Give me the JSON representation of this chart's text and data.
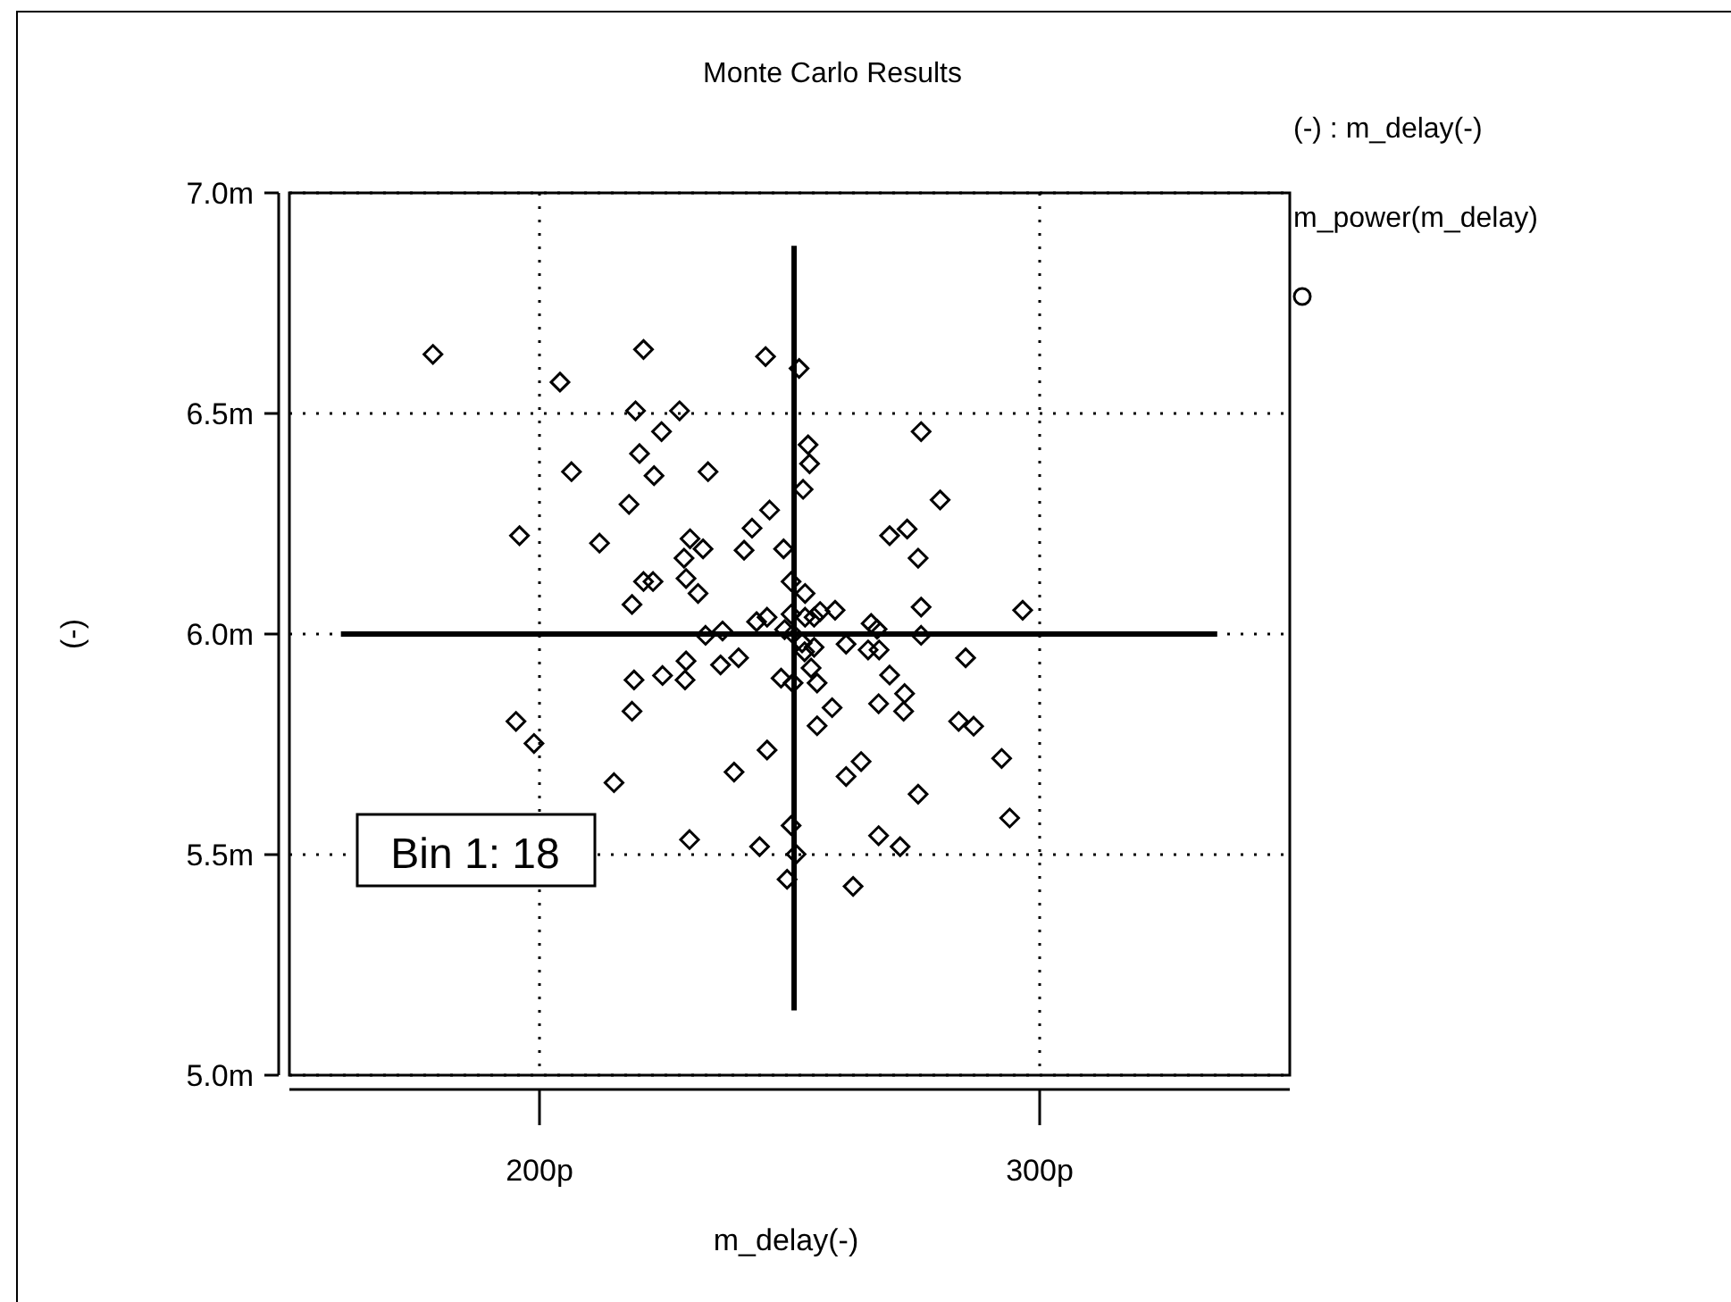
{
  "chart_data": {
    "type": "scatter",
    "title": "Monte Carlo Results",
    "xlabel": "m_delay(-)",
    "ylabel": "(-)",
    "legend_title": "(-) : m_delay(-)",
    "legend": "top right",
    "grid": true,
    "marker": "diamond",
    "xlim": [
      150,
      350
    ],
    "ylim": [
      5.0,
      7.0
    ],
    "xticks": [
      {
        "value": 200,
        "label": "200p"
      },
      {
        "value": 300,
        "label": "300p"
      }
    ],
    "yticks": [
      {
        "value": 5.0,
        "label": "5.0m"
      },
      {
        "value": 5.5,
        "label": "5.5m"
      },
      {
        "value": 6.0,
        "label": "6.0m"
      },
      {
        "value": 6.5,
        "label": "6.5m"
      },
      {
        "value": 7.0,
        "label": "7.0m"
      }
    ],
    "annotations": [
      "Bin 1: 18"
    ],
    "series": [
      {
        "name": "m_power(m_delay)",
        "color": "#000000",
        "x": [
          178.7,
          220.8,
          245.2,
          251.9,
          204.1,
          219.2,
          228.0,
          224.4,
          220.0,
          206.4,
          222.9,
          233.7,
          217.9,
          246.0,
          242.5,
          196.0,
          212.0,
          230.1,
          232.7,
          228.9,
          240.9,
          248.8,
          220.8,
          222.7,
          229.3,
          231.7,
          218.5,
          250.3,
          253.1,
          243.4,
          245.5,
          250.3,
          253.1,
          233.2,
          236.6,
          253.7,
          254.0,
          252.7,
          276.3,
          280.1,
          270.0,
          273.5,
          275.7,
          276.3,
          296.6,
          256.1,
          259.1,
          254.9,
          266.3,
          267.5,
          276.3,
          254.9,
          261.3,
          265.7,
          267.9,
          285.2,
          270.0,
          273.0,
          272.8,
          267.8,
          258.5,
          255.5,
          255.5,
          254.3,
          248.3,
          250.7,
          283.8,
          286.8,
          245.5,
          264.3,
          261.3,
          292.4,
          275.7,
          294.0,
          250.3,
          267.8,
          272.1,
          244.0,
          251.3,
          249.5,
          262.7,
          229.3,
          236.2,
          239.8,
          218.9,
          224.6,
          229.1,
          218.5,
          195.3,
          198.9,
          214.9,
          238.9,
          230.0,
          250.7,
          252.5,
          249.0,
          253.0
        ],
        "values": [
          6.634,
          6.645,
          6.629,
          6.602,
          6.571,
          6.506,
          6.506,
          6.459,
          6.409,
          6.368,
          6.359,
          6.368,
          6.294,
          6.281,
          6.24,
          6.223,
          6.206,
          6.216,
          6.193,
          6.172,
          6.19,
          6.193,
          6.119,
          6.119,
          6.126,
          6.092,
          6.067,
          6.119,
          6.092,
          6.028,
          6.038,
          6.045,
          6.038,
          5.997,
          6.007,
          6.429,
          6.386,
          6.328,
          6.459,
          6.304,
          6.223,
          6.238,
          6.172,
          6.061,
          6.054,
          6.051,
          6.054,
          6.038,
          6.024,
          6.011,
          5.997,
          5.97,
          5.977,
          5.964,
          5.964,
          5.946,
          5.907,
          5.865,
          5.825,
          5.842,
          5.833,
          5.792,
          5.889,
          5.923,
          5.9,
          5.889,
          5.802,
          5.791,
          5.737,
          5.711,
          5.677,
          5.718,
          5.637,
          5.583,
          5.566,
          5.543,
          5.518,
          5.518,
          5.501,
          5.444,
          5.428,
          5.939,
          5.93,
          5.946,
          5.896,
          5.906,
          5.896,
          5.825,
          5.802,
          5.752,
          5.663,
          5.687,
          5.534,
          6.0,
          5.98,
          6.01,
          5.96
        ]
      },
      {
        "type": "line",
        "marker": "none",
        "color": "#000000",
        "x": [
          160.3,
          335.5
        ],
        "values": [
          6.0,
          6.0
        ]
      },
      {
        "type": "line",
        "marker": "none",
        "color": "#000000",
        "x": [
          250.9,
          250.9
        ],
        "values": [
          5.147,
          6.88
        ]
      }
    ]
  }
}
